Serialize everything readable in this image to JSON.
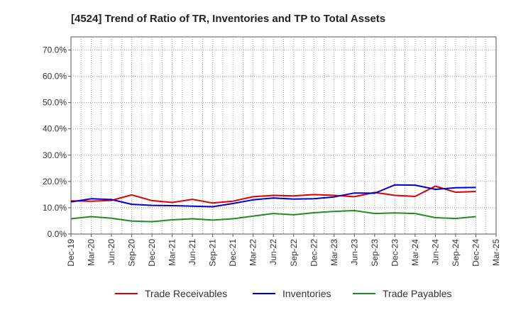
{
  "chart_data": {
    "type": "line",
    "title": "[4524]  Trend of Ratio of TR, Inventories and TP to Total Assets",
    "xlabel": "",
    "ylabel": "",
    "x_tick_labels": [
      "Dec-19",
      "Mar-20",
      "Jun-20",
      "Sep-20",
      "Dec-20",
      "Mar-21",
      "Jun-21",
      "Sep-21",
      "Dec-21",
      "Mar-22",
      "Jun-22",
      "Sep-22",
      "Dec-22",
      "Mar-23",
      "Jun-23",
      "Sep-23",
      "Dec-23",
      "Mar-24",
      "Jun-24",
      "Sep-24",
      "Dec-24",
      "Mar-25"
    ],
    "y_tick_labels": [
      "0.0%",
      "10.0%",
      "20.0%",
      "30.0%",
      "40.0%",
      "50.0%",
      "60.0%",
      "70.0%"
    ],
    "ylim": [
      0,
      75
    ],
    "grid": true,
    "legend_position": "bottom",
    "x": [
      "Dec-19",
      "Mar-20",
      "Jun-20",
      "Sep-20",
      "Dec-20",
      "Mar-21",
      "Jun-21",
      "Sep-21",
      "Dec-21",
      "Mar-22",
      "Jun-22",
      "Sep-22",
      "Dec-22",
      "Mar-23",
      "Jun-23",
      "Sep-23",
      "Dec-23",
      "Mar-24",
      "Jun-24",
      "Sep-24",
      "Dec-24"
    ],
    "series": [
      {
        "name": "Trade Receivables",
        "color": "#dd0000",
        "values": [
          12.6,
          12.5,
          12.8,
          14.9,
          12.7,
          12.0,
          13.2,
          11.8,
          12.5,
          14.2,
          14.7,
          14.5,
          15.0,
          14.7,
          14.2,
          15.8,
          14.7,
          14.3,
          18.2,
          15.9,
          16.2
        ]
      },
      {
        "name": "Inventories",
        "color": "#0000cc",
        "values": [
          12.2,
          13.4,
          13.1,
          11.3,
          10.9,
          10.8,
          10.6,
          10.4,
          11.6,
          13.0,
          13.7,
          13.3,
          13.4,
          14.1,
          15.6,
          15.5,
          18.7,
          18.6,
          17.0,
          17.6,
          17.7
        ]
      },
      {
        "name": "Trade Payables",
        "color": "#228b22",
        "values": [
          5.8,
          6.6,
          6.0,
          4.9,
          4.7,
          5.4,
          5.8,
          5.3,
          5.8,
          6.8,
          7.8,
          7.3,
          8.1,
          8.6,
          8.9,
          7.8,
          8.0,
          7.8,
          6.2,
          5.9,
          6.6
        ]
      }
    ]
  }
}
